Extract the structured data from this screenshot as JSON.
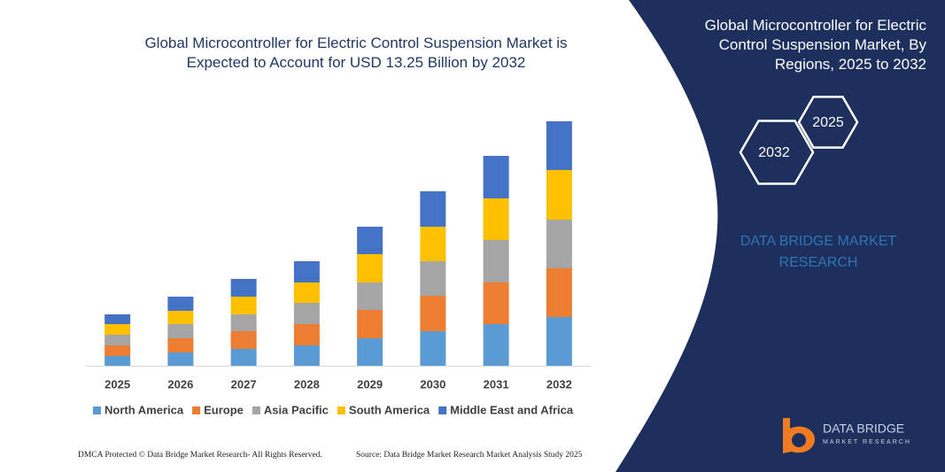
{
  "chart_data": {
    "type": "bar",
    "stacked": true,
    "title": "Global Microcontroller for Electric Control Suspension Market is Expected to Account for USD 13.25 Billion by 2032",
    "categories": [
      "2025",
      "2026",
      "2027",
      "2028",
      "2029",
      "2030",
      "2031",
      "2032"
    ],
    "series": [
      {
        "name": "North America",
        "color": "#5b9bd5",
        "values": [
          11,
          15,
          19,
          23,
          31,
          39,
          47,
          55
        ]
      },
      {
        "name": "Europe",
        "color": "#ed7d31",
        "values": [
          12,
          16,
          20,
          24,
          32,
          40,
          47,
          55
        ]
      },
      {
        "name": "Asia Pacific",
        "color": "#a5a5a5",
        "values": [
          12,
          16,
          19,
          24,
          31,
          39,
          48,
          55
        ]
      },
      {
        "name": "South America",
        "color": "#ffc000",
        "values": [
          12,
          15,
          20,
          23,
          32,
          39,
          47,
          56
        ]
      },
      {
        "name": "Middle East and Africa",
        "color": "#4472c4",
        "values": [
          11,
          16,
          20,
          24,
          31,
          40,
          48,
          55
        ]
      }
    ],
    "legend": "bottom"
  },
  "panel": {
    "title": "Global Microcontroller for Electric Control Suspension Market, By Regions, 2025 to 2032",
    "hex_labels": [
      "2025",
      "2032"
    ],
    "brand": "DATA BRIDGE MARKET RESEARCH"
  },
  "logo": {
    "name": "DATA BRIDGE",
    "tagline": "MARKET RESEARCH"
  },
  "footer": {
    "left": "DMCA Protected © Data Bridge Market Research- All Rights Reserved.",
    "right": "Source: Data Bridge Market Research Market Analysis Study 2025"
  }
}
